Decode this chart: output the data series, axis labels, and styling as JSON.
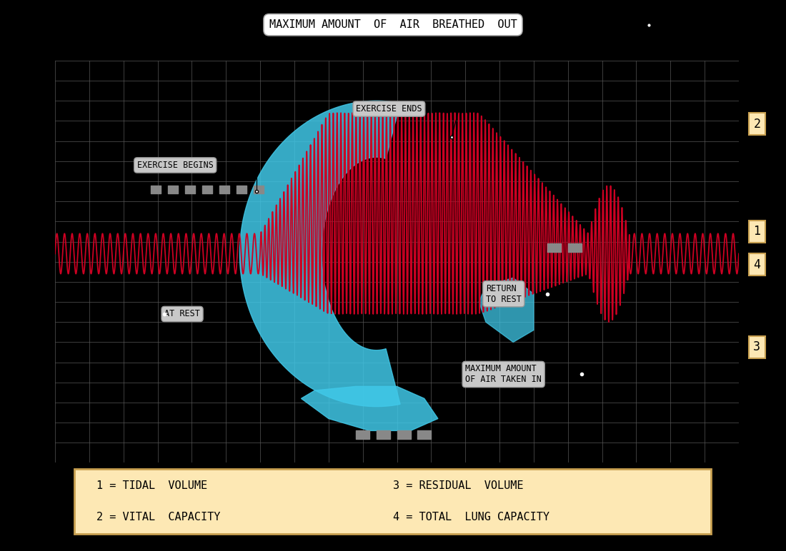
{
  "bg_color": "#000000",
  "chart_bg": "#000000",
  "grid_color": "#555555",
  "cyan_color": "#40c8e8",
  "red_color": "#cc0022",
  "label_box_color": "#fde8b4",
  "label_border_color": "#c8a050",
  "annotation_bg": "#c8c8c8",
  "annotation_border": "#999999",
  "legend_bg": "#fde8b4",
  "legend_border": "#c8a050",
  "top_label": "MAXIMUM AMOUNT  OF  AIR  BREATHED  OUT",
  "ann_exercise_begins": "EXERCISE BEGINS",
  "ann_exercise_ends": "EXERCISE ENDS",
  "ann_at_rest": "AT REST",
  "ann_return": "RETURN\nTO REST",
  "ann_max_taken": "MAXIMUM AMOUNT\nOF AIR TAKEN IN",
  "leg1": "1 = TIDAL  VOLUME",
  "leg2": "2 = VITAL  CAPACITY",
  "leg3": "3 = RESIDUAL  VOLUME",
  "leg4": "4 = TOTAL  LUNG CAPACITY",
  "side_labels": [
    {
      "text": "2",
      "yf": 0.775
    },
    {
      "text": "1",
      "yf": 0.58
    },
    {
      "text": "4",
      "yf": 0.52
    },
    {
      "text": "3",
      "yf": 0.37
    }
  ]
}
